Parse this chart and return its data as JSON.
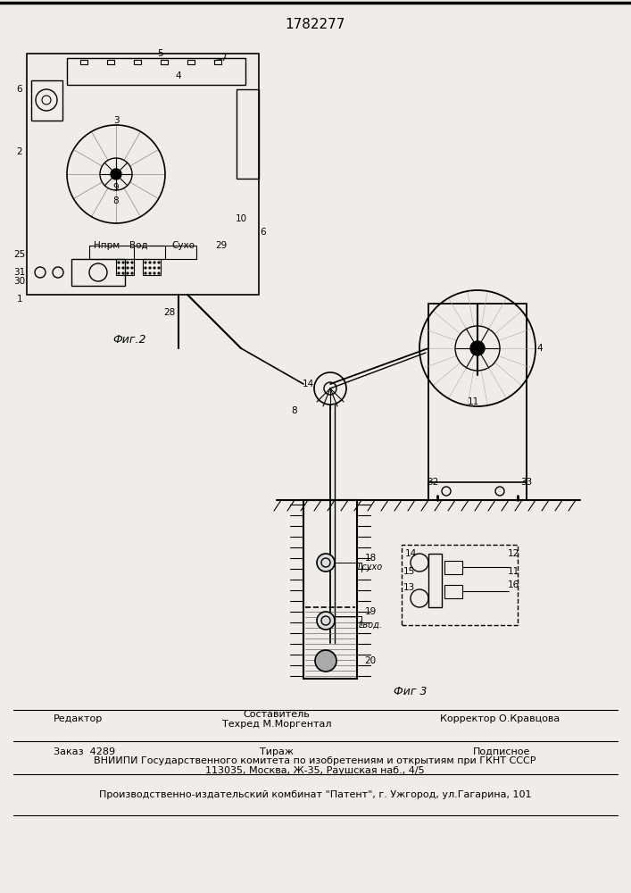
{
  "title": "1782277",
  "bg_color": "#f0ede8",
  "fig_width": 7.07,
  "fig_height": 10.0,
  "footer": {
    "line1_left": "Редактор",
    "line1_center_top": "Составитель",
    "line1_center_bot": "Техред М.Моргентал",
    "line1_right": "Корректор О.Кравцова",
    "line2_left": "Заказ  4289",
    "line2_center": "Тираж",
    "line2_right": "Подписное",
    "line3": "ВНИИПИ Государственного комитета по изобретениям и открытиям при ГКНТ СССР",
    "line4": "113035, Москва, Ж-35, Раушская наб., 4/5",
    "line5": "Производственно-издательский комбинат \"Патент\", г. Ужгород, ул.Гагарина, 101"
  },
  "fig2_label": "Фиг.2",
  "fig3_label": "Фиг 3"
}
